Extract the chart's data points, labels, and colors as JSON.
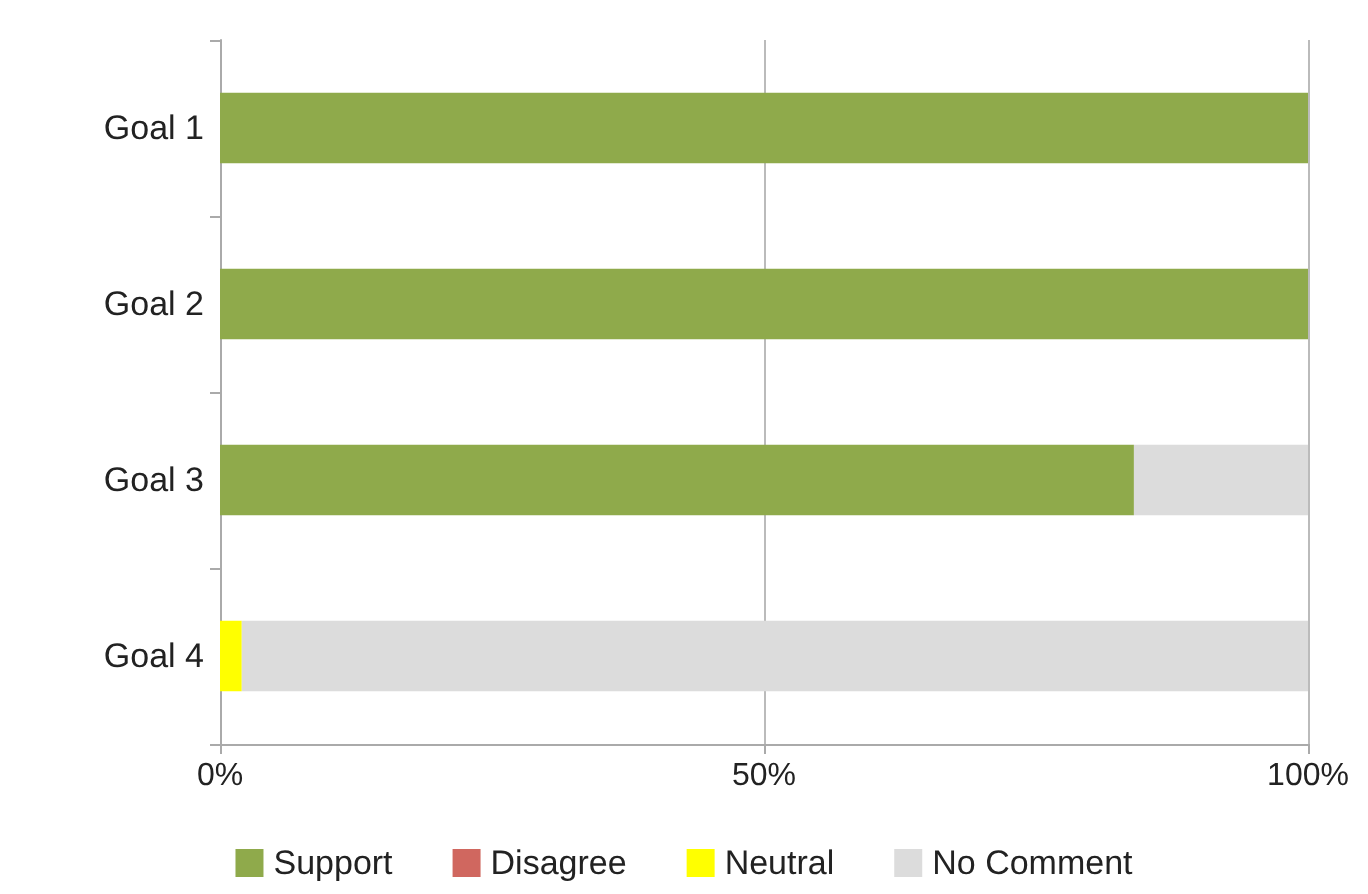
{
  "chart_data": {
    "type": "bar",
    "orientation": "horizontal",
    "stacked": true,
    "categories": [
      "Goal 1",
      "Goal 2",
      "Goal 3",
      "Goal 4"
    ],
    "series": [
      {
        "name": "Support",
        "color": "#8faa4b",
        "values": [
          100,
          100,
          84,
          0
        ]
      },
      {
        "name": "Disagree",
        "color": "#d0675f",
        "values": [
          0,
          0,
          0,
          0
        ]
      },
      {
        "name": "Neutral",
        "color": "#ffff00",
        "values": [
          0,
          0,
          0,
          2
        ]
      },
      {
        "name": "No Comment",
        "color": "#dcdcdc",
        "values": [
          0,
          0,
          16,
          98
        ]
      }
    ],
    "xlim": [
      0,
      100
    ],
    "xticks": [
      {
        "value": 0,
        "label": "0%"
      },
      {
        "value": 50,
        "label": "50%"
      },
      {
        "value": 100,
        "label": "100%"
      }
    ],
    "grid": "x",
    "legend": "bottom"
  }
}
